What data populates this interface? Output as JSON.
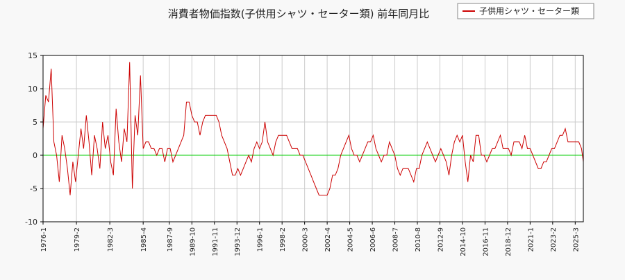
{
  "chart_data": {
    "type": "line",
    "title": "消費者物価指数(子供用シャツ・セーター類) 前年同月比",
    "legend": {
      "placement": "top-right",
      "label": "子供用シャツ・セーター類"
    },
    "xlabel": "",
    "ylabel": "",
    "ylim": [
      -10,
      15
    ],
    "y_ticks": [
      -10,
      -5,
      0,
      5,
      10,
      15
    ],
    "x_range": [
      "1976-1",
      "2025-12"
    ],
    "x_ticks": [
      "1976-1",
      "1979-2",
      "1982-3",
      "1985-4",
      "1987-9",
      "1989-10",
      "1991-11",
      "1993-12",
      "1996-1",
      "1998-2",
      "2000-3",
      "2002-4",
      "2004-5",
      "2006-6",
      "2008-7",
      "2010-8",
      "2012-9",
      "2014-10",
      "2016-11",
      "2018-12",
      "2021-1",
      "2023-2",
      "2025-3"
    ],
    "grid": true,
    "reference_line": {
      "y": 0,
      "color": "#00cc00"
    },
    "series": [
      {
        "name": "子供用シャツ・セーター類",
        "color": "#cc0000",
        "points": [
          [
            "1976-1",
            4
          ],
          [
            "1976-4",
            9
          ],
          [
            "1976-7",
            8
          ],
          [
            "1976-10",
            13
          ],
          [
            "1977-1",
            2
          ],
          [
            "1977-4",
            0
          ],
          [
            "1977-7",
            -4
          ],
          [
            "1977-10",
            3
          ],
          [
            "1978-1",
            1
          ],
          [
            "1978-4",
            -2
          ],
          [
            "1978-7",
            -6
          ],
          [
            "1978-10",
            -1
          ],
          [
            "1979-1",
            -4
          ],
          [
            "1979-4",
            0
          ],
          [
            "1979-7",
            4
          ],
          [
            "1979-10",
            1
          ],
          [
            "1980-1",
            6
          ],
          [
            "1980-4",
            2
          ],
          [
            "1980-7",
            -3
          ],
          [
            "1980-10",
            3
          ],
          [
            "1981-1",
            1
          ],
          [
            "1981-4",
            -2
          ],
          [
            "1981-7",
            5
          ],
          [
            "1981-10",
            1
          ],
          [
            "1982-1",
            3
          ],
          [
            "1982-4",
            -1
          ],
          [
            "1982-7",
            -3
          ],
          [
            "1982-10",
            7
          ],
          [
            "1983-1",
            2
          ],
          [
            "1983-4",
            -1
          ],
          [
            "1983-7",
            4
          ],
          [
            "1983-10",
            2
          ],
          [
            "1984-1",
            14
          ],
          [
            "1984-4",
            -5
          ],
          [
            "1984-7",
            6
          ],
          [
            "1984-10",
            3
          ],
          [
            "1985-1",
            12
          ],
          [
            "1985-4",
            1
          ],
          [
            "1985-7",
            2
          ],
          [
            "1985-10",
            2
          ],
          [
            "1986-1",
            1
          ],
          [
            "1986-4",
            1
          ],
          [
            "1986-7",
            0
          ],
          [
            "1986-10",
            1
          ],
          [
            "1987-1",
            1
          ],
          [
            "1987-4",
            -1
          ],
          [
            "1987-7",
            1
          ],
          [
            "1987-10",
            1
          ],
          [
            "1988-1",
            -1
          ],
          [
            "1988-4",
            0
          ],
          [
            "1988-7",
            1
          ],
          [
            "1988-10",
            2
          ],
          [
            "1989-1",
            3
          ],
          [
            "1989-4",
            8
          ],
          [
            "1989-7",
            8
          ],
          [
            "1989-10",
            6
          ],
          [
            "1990-1",
            5
          ],
          [
            "1990-4",
            5
          ],
          [
            "1990-7",
            3
          ],
          [
            "1990-10",
            5
          ],
          [
            "1991-1",
            6
          ],
          [
            "1991-4",
            6
          ],
          [
            "1991-7",
            6
          ],
          [
            "1991-10",
            6
          ],
          [
            "1992-1",
            6
          ],
          [
            "1992-4",
            5
          ],
          [
            "1992-7",
            3
          ],
          [
            "1992-10",
            2
          ],
          [
            "1993-1",
            1
          ],
          [
            "1993-4",
            -1
          ],
          [
            "1993-7",
            -3
          ],
          [
            "1993-10",
            -3
          ],
          [
            "1994-1",
            -2
          ],
          [
            "1994-4",
            -3
          ],
          [
            "1994-7",
            -2
          ],
          [
            "1994-10",
            -1
          ],
          [
            "1995-1",
            0
          ],
          [
            "1995-4",
            -1
          ],
          [
            "1995-7",
            1
          ],
          [
            "1995-10",
            2
          ],
          [
            "1996-1",
            1
          ],
          [
            "1996-4",
            2
          ],
          [
            "1996-7",
            5
          ],
          [
            "1996-10",
            2
          ],
          [
            "1997-1",
            1
          ],
          [
            "1997-4",
            0
          ],
          [
            "1997-7",
            2
          ],
          [
            "1997-10",
            3
          ],
          [
            "1998-1",
            3
          ],
          [
            "1998-4",
            3
          ],
          [
            "1998-7",
            3
          ],
          [
            "1998-10",
            2
          ],
          [
            "1999-1",
            1
          ],
          [
            "1999-4",
            1
          ],
          [
            "1999-7",
            1
          ],
          [
            "1999-10",
            0
          ],
          [
            "2000-1",
            0
          ],
          [
            "2000-4",
            -1
          ],
          [
            "2000-7",
            -2
          ],
          [
            "2000-10",
            -3
          ],
          [
            "2001-1",
            -4
          ],
          [
            "2001-4",
            -5
          ],
          [
            "2001-7",
            -6
          ],
          [
            "2001-10",
            -6
          ],
          [
            "2002-1",
            -6
          ],
          [
            "2002-4",
            -6
          ],
          [
            "2002-7",
            -5
          ],
          [
            "2002-10",
            -3
          ],
          [
            "2003-1",
            -3
          ],
          [
            "2003-4",
            -2
          ],
          [
            "2003-7",
            0
          ],
          [
            "2003-10",
            1
          ],
          [
            "2004-1",
            2
          ],
          [
            "2004-4",
            3
          ],
          [
            "2004-7",
            1
          ],
          [
            "2004-10",
            0
          ],
          [
            "2005-1",
            0
          ],
          [
            "2005-4",
            -1
          ],
          [
            "2005-7",
            0
          ],
          [
            "2005-10",
            1
          ],
          [
            "2006-1",
            2
          ],
          [
            "2006-4",
            2
          ],
          [
            "2006-7",
            3
          ],
          [
            "2006-10",
            1
          ],
          [
            "2007-1",
            0
          ],
          [
            "2007-4",
            -1
          ],
          [
            "2007-7",
            0
          ],
          [
            "2007-10",
            0
          ],
          [
            "2008-1",
            2
          ],
          [
            "2008-4",
            1
          ],
          [
            "2008-7",
            0
          ],
          [
            "2008-10",
            -2
          ],
          [
            "2009-1",
            -3
          ],
          [
            "2009-4",
            -2
          ],
          [
            "2009-7",
            -2
          ],
          [
            "2009-10",
            -2
          ],
          [
            "2010-1",
            -3
          ],
          [
            "2010-4",
            -4
          ],
          [
            "2010-7",
            -2
          ],
          [
            "2010-10",
            -2
          ],
          [
            "2011-1",
            0
          ],
          [
            "2011-4",
            1
          ],
          [
            "2011-7",
            2
          ],
          [
            "2011-10",
            1
          ],
          [
            "2012-1",
            0
          ],
          [
            "2012-4",
            -1
          ],
          [
            "2012-7",
            0
          ],
          [
            "2012-10",
            1
          ],
          [
            "2013-1",
            0
          ],
          [
            "2013-4",
            -1
          ],
          [
            "2013-7",
            -3
          ],
          [
            "2013-10",
            0
          ],
          [
            "2014-1",
            2
          ],
          [
            "2014-4",
            3
          ],
          [
            "2014-7",
            2
          ],
          [
            "2014-10",
            3
          ],
          [
            "2015-1",
            -1
          ],
          [
            "2015-4",
            -4
          ],
          [
            "2015-7",
            0
          ],
          [
            "2015-10",
            -1
          ],
          [
            "2016-1",
            3
          ],
          [
            "2016-4",
            3
          ],
          [
            "2016-7",
            0
          ],
          [
            "2016-10",
            0
          ],
          [
            "2017-1",
            -1
          ],
          [
            "2017-4",
            0
          ],
          [
            "2017-7",
            1
          ],
          [
            "2017-10",
            1
          ],
          [
            "2018-1",
            2
          ],
          [
            "2018-4",
            3
          ],
          [
            "2018-7",
            1
          ],
          [
            "2018-10",
            1
          ],
          [
            "2019-1",
            1
          ],
          [
            "2019-4",
            0
          ],
          [
            "2019-7",
            2
          ],
          [
            "2019-10",
            2
          ],
          [
            "2020-1",
            2
          ],
          [
            "2020-4",
            1
          ],
          [
            "2020-7",
            3
          ],
          [
            "2020-10",
            1
          ],
          [
            "2021-1",
            1
          ],
          [
            "2021-4",
            0
          ],
          [
            "2021-7",
            -1
          ],
          [
            "2021-10",
            -2
          ],
          [
            "2022-1",
            -2
          ],
          [
            "2022-4",
            -1
          ],
          [
            "2022-7",
            -1
          ],
          [
            "2022-10",
            0
          ],
          [
            "2023-1",
            1
          ],
          [
            "2023-4",
            1
          ],
          [
            "2023-7",
            2
          ],
          [
            "2023-10",
            3
          ],
          [
            "2024-1",
            3
          ],
          [
            "2024-4",
            4
          ],
          [
            "2024-7",
            2
          ],
          [
            "2024-10",
            2
          ],
          [
            "2025-1",
            2
          ],
          [
            "2025-4",
            2
          ],
          [
            "2025-7",
            2
          ],
          [
            "2025-10",
            1
          ],
          [
            "2025-12",
            -1
          ]
        ]
      }
    ]
  }
}
